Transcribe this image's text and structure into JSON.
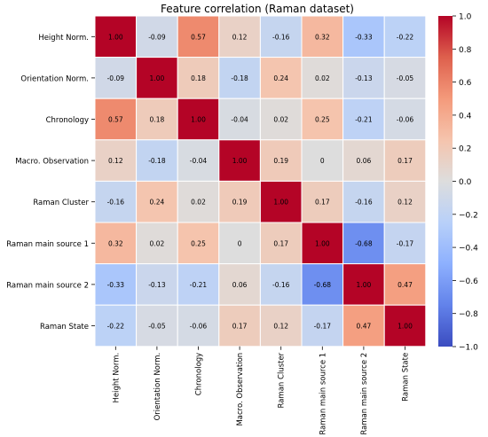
{
  "chart_data": {
    "type": "heatmap",
    "title": "Feature correlation (Raman dataset)",
    "xlabel": "",
    "ylabel": "",
    "labels": [
      "Height Norm.",
      "Orientation Norm.",
      "Chronology",
      "Macro. Observation",
      "Raman Cluster",
      "Raman main source 1",
      "Raman main source 2",
      "Raman State"
    ],
    "matrix": [
      [
        1.0,
        -0.09,
        0.57,
        0.12,
        -0.16,
        0.32,
        -0.33,
        -0.22
      ],
      [
        -0.09,
        1.0,
        0.18,
        -0.18,
        0.24,
        0.02,
        -0.13,
        -0.05
      ],
      [
        0.57,
        0.18,
        1.0,
        -0.04,
        0.02,
        0.25,
        -0.21,
        -0.06
      ],
      [
        0.12,
        -0.18,
        -0.04,
        1.0,
        0.19,
        0,
        0.06,
        0.17
      ],
      [
        -0.16,
        0.24,
        0.02,
        0.19,
        1.0,
        0.17,
        -0.16,
        0.12
      ],
      [
        0.32,
        0.02,
        0.25,
        0,
        0.17,
        1.0,
        -0.68,
        -0.17
      ],
      [
        -0.33,
        -0.13,
        -0.21,
        0.06,
        -0.16,
        -0.68,
        1.0,
        0.47
      ],
      [
        -0.22,
        -0.05,
        -0.06,
        0.17,
        0.12,
        -0.17,
        0.47,
        1.0
      ]
    ],
    "cell_labels": [
      [
        "1.00",
        "-0.09",
        "0.57",
        "0.12",
        "-0.16",
        "0.32",
        "-0.33",
        "-0.22"
      ],
      [
        "-0.09",
        "1.00",
        "0.18",
        "-0.18",
        "0.24",
        "0.02",
        "-0.13",
        "-0.05"
      ],
      [
        "0.57",
        "0.18",
        "1.00",
        "-0.04",
        "0.02",
        "0.25",
        "-0.21",
        "-0.06"
      ],
      [
        "0.12",
        "-0.18",
        "-0.04",
        "1.00",
        "0.19",
        "0",
        "0.06",
        "0.17"
      ],
      [
        "-0.16",
        "0.24",
        "0.02",
        "0.19",
        "1.00",
        "0.17",
        "-0.16",
        "0.12"
      ],
      [
        "0.32",
        "0.02",
        "0.25",
        "0",
        "0.17",
        "1.00",
        "-0.68",
        "-0.17"
      ],
      [
        "-0.33",
        "-0.13",
        "-0.21",
        "0.06",
        "-0.16",
        "-0.68",
        "1.00",
        "0.47"
      ],
      [
        "-0.22",
        "-0.05",
        "-0.06",
        "0.17",
        "0.12",
        "-0.17",
        "0.47",
        "1.00"
      ]
    ],
    "colormap": "coolwarm",
    "vmin": -1.0,
    "vmax": 1.0,
    "colorbar_ticks": [
      1.0,
      0.8,
      0.6,
      0.4,
      0.2,
      0.0,
      -0.2,
      -0.4,
      -0.6,
      -0.8,
      -1.0
    ],
    "colorbar_tick_labels": [
      "1.0",
      "0.8",
      "0.6",
      "0.4",
      "0.2",
      "0.0",
      "−0.2",
      "−0.4",
      "−0.6",
      "−0.8",
      "−1.0"
    ],
    "cell_border_color": "#ffffff"
  }
}
